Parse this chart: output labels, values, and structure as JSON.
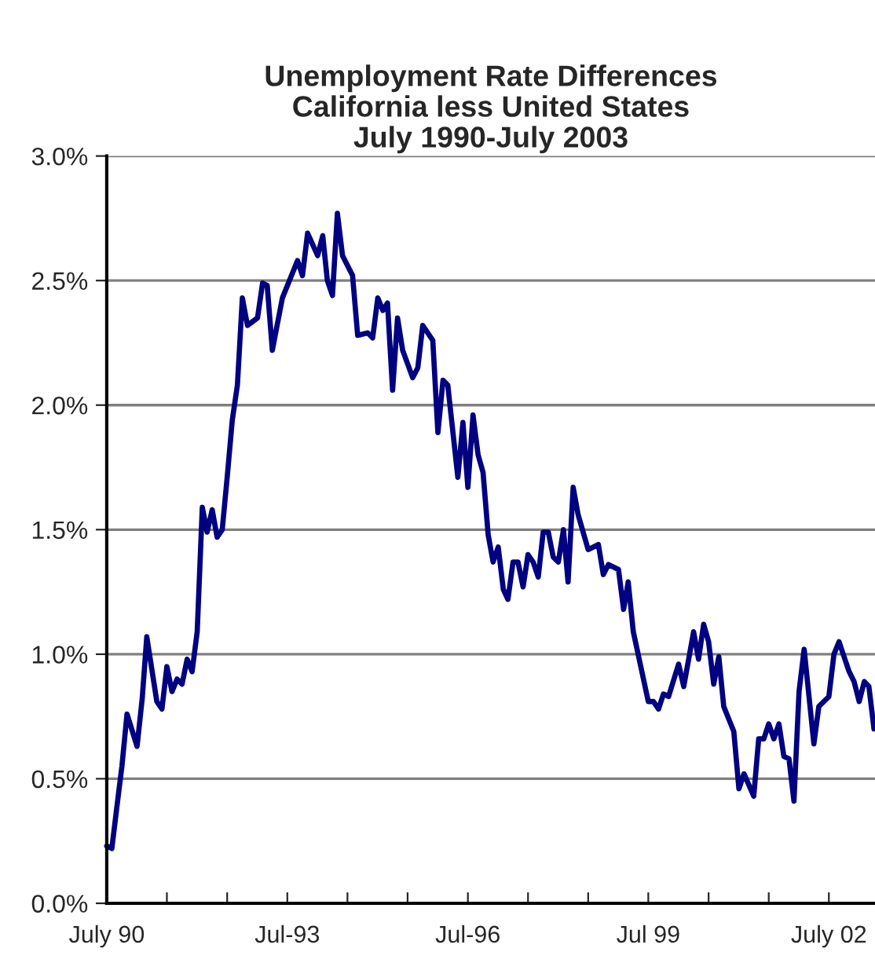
{
  "chart_data": {
    "type": "line",
    "title": "Unemployment Rate Differences\nCalifornia less United States\nJuly 1990-July 2003",
    "x": [
      "1990-07",
      "1990-08",
      "1990-09",
      "1990-10",
      "1990-11",
      "1991-01",
      "1991-02",
      "1991-03",
      "1991-05",
      "1991-06",
      "1991-07",
      "1991-08",
      "1991-09",
      "1991-10",
      "1991-11",
      "1991-12",
      "1992-01",
      "1992-02",
      "1992-03",
      "1992-04",
      "1992-05",
      "1992-06",
      "1992-07",
      "1992-08",
      "1992-09",
      "1992-10",
      "1992-11",
      "1993-01",
      "1993-02",
      "1993-03",
      "1993-04",
      "1993-06",
      "1993-09",
      "1993-10",
      "1993-11",
      "1994-01",
      "1994-02",
      "1994-03",
      "1994-04",
      "1994-05",
      "1994-06",
      "1994-08",
      "1994-09",
      "1994-11",
      "1994-12",
      "1995-01",
      "1995-02",
      "1995-03",
      "1995-04",
      "1995-05",
      "1995-06",
      "1995-08",
      "1995-09",
      "1995-10",
      "1995-12",
      "1996-01",
      "1996-02",
      "1996-03",
      "1996-05",
      "1996-06",
      "1996-07",
      "1996-08",
      "1996-09",
      "1996-10",
      "1996-11",
      "1996-12",
      "1997-01",
      "1997-02",
      "1997-03",
      "1997-04",
      "1997-05",
      "1997-06",
      "1997-07",
      "1997-08",
      "1997-09",
      "1997-10",
      "1997-11",
      "1997-12",
      "1998-01",
      "1998-02",
      "1998-03",
      "1998-04",
      "1998-05",
      "1998-07",
      "1998-09",
      "1998-10",
      "1998-11",
      "1999-01",
      "1999-02",
      "1999-03",
      "1999-04",
      "1999-07",
      "1999-08",
      "1999-09",
      "1999-10",
      "1999-11",
      "2000-01",
      "2000-02",
      "2000-04",
      "2000-05",
      "2000-06",
      "2000-07",
      "2000-08",
      "2000-09",
      "2000-10",
      "2000-12",
      "2001-01",
      "2001-02",
      "2001-04",
      "2001-05",
      "2001-06",
      "2001-07",
      "2001-08",
      "2001-09",
      "2001-10",
      "2001-11",
      "2001-12",
      "2002-01",
      "2002-02",
      "2002-04",
      "2002-05",
      "2002-07",
      "2002-08",
      "2002-09",
      "2002-10",
      "2002-11",
      "2002-12",
      "2003-01",
      "2003-02",
      "2003-03",
      "2003-04"
    ],
    "series": [
      {
        "color": "#000080",
        "values": [
          0.23,
          0.22,
          0.39,
          0.55,
          0.76,
          0.63,
          0.82,
          1.07,
          0.81,
          0.78,
          0.95,
          0.85,
          0.9,
          0.88,
          0.98,
          0.93,
          1.09,
          1.59,
          1.49,
          1.58,
          1.47,
          1.5,
          1.71,
          1.94,
          2.08,
          2.43,
          2.32,
          2.35,
          2.49,
          2.48,
          2.22,
          2.43,
          2.58,
          2.52,
          2.69,
          2.6,
          2.68,
          2.5,
          2.44,
          2.77,
          2.6,
          2.52,
          2.28,
          2.29,
          2.27,
          2.43,
          2.38,
          2.41,
          2.06,
          2.35,
          2.22,
          2.11,
          2.15,
          2.32,
          2.26,
          1.89,
          2.1,
          2.08,
          1.71,
          1.93,
          1.67,
          1.96,
          1.8,
          1.73,
          1.48,
          1.37,
          1.43,
          1.26,
          1.22,
          1.37,
          1.37,
          1.27,
          1.4,
          1.37,
          1.31,
          1.49,
          1.49,
          1.39,
          1.37,
          1.5,
          1.29,
          1.67,
          1.56,
          1.42,
          1.44,
          1.32,
          1.36,
          1.34,
          1.18,
          1.29,
          1.09,
          0.81,
          0.81,
          0.78,
          0.84,
          0.83,
          0.96,
          0.87,
          1.09,
          0.98,
          1.12,
          1.05,
          0.88,
          0.99,
          0.79,
          0.69,
          0.46,
          0.52,
          0.43,
          0.66,
          0.66,
          0.72,
          0.66,
          0.72,
          0.59,
          0.58,
          0.41,
          0.85,
          1.02,
          0.64,
          0.79,
          0.83,
          1.0,
          1.05,
          0.99,
          0.93,
          0.89,
          0.81,
          0.89,
          0.87,
          0.7
        ]
      }
    ],
    "xlim": [
      "1990-07-01",
      "2003-04-07"
    ],
    "xticks": [
      {
        "value": "1990-07",
        "label": "July 90"
      },
      {
        "value": "1991-07",
        "label": null
      },
      {
        "value": "1992-07",
        "label": null
      },
      {
        "value": "1993-07",
        "label": "Jul-93"
      },
      {
        "value": "1994-07",
        "label": null
      },
      {
        "value": "1995-07",
        "label": null
      },
      {
        "value": "1996-07",
        "label": "Jul-96"
      },
      {
        "value": "1997-07",
        "label": null
      },
      {
        "value": "1998-07",
        "label": null
      },
      {
        "value": "1999-07",
        "label": "Jul 99"
      },
      {
        "value": "2000-07",
        "label": null
      },
      {
        "value": "2001-07",
        "label": null
      },
      {
        "value": "2002-07",
        "label": "July 02"
      }
    ],
    "ylim": [
      0,
      3
    ],
    "yticks": [
      {
        "value": 0,
        "label": "0.0%"
      },
      {
        "value": 0.5,
        "label": "0.5%"
      },
      {
        "value": 1,
        "label": "1.0%"
      },
      {
        "value": 1.5,
        "label": "1.5%"
      },
      {
        "value": 2,
        "label": "2.0%"
      },
      {
        "value": 2.5,
        "label": "2.5%"
      },
      {
        "value": 3,
        "label": "3.0%"
      }
    ],
    "grid": "y",
    "marker": "none",
    "line_style": "solid",
    "legend": false
  }
}
